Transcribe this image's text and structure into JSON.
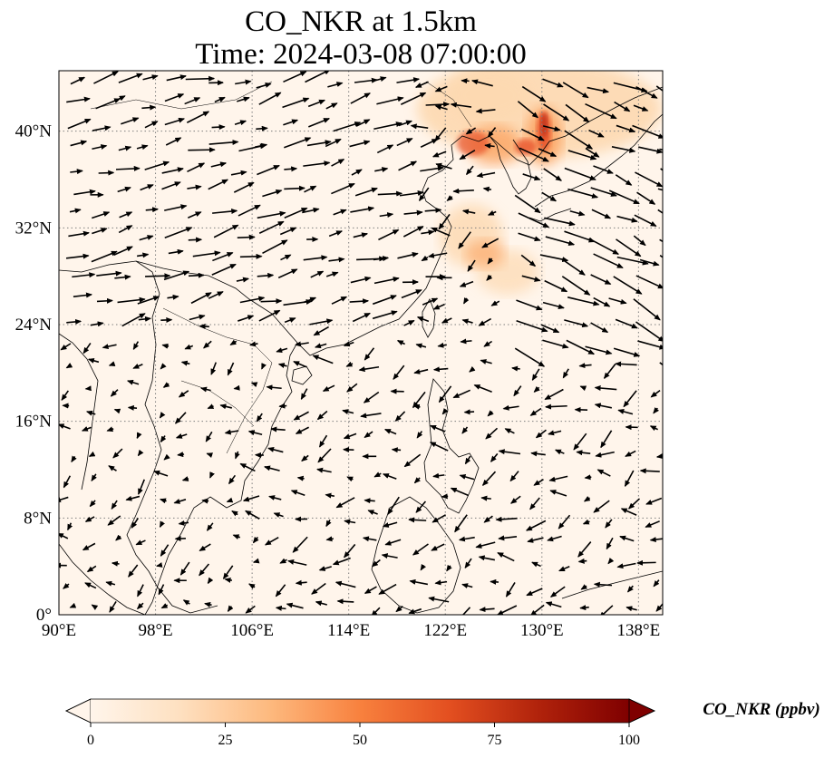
{
  "title": {
    "line1": "CO_NKR at 1.5km",
    "line2": "Time: 2024-03-08 07:00:00"
  },
  "map": {
    "extent": {
      "lon": [
        90,
        140
      ],
      "lat": [
        0,
        45
      ]
    },
    "lon_ticks": [
      "90°E",
      "98°E",
      "106°E",
      "114°E",
      "122°E",
      "130°E",
      "138°E"
    ],
    "lat_ticks": [
      "0°",
      "8°N",
      "16°N",
      "24°N",
      "32°N",
      "40°N"
    ],
    "lon_tick_values": [
      90,
      98,
      106,
      114,
      122,
      130,
      138
    ],
    "lat_tick_values": [
      0,
      8,
      16,
      24,
      32,
      40
    ],
    "gridlines": true,
    "field_colors": {
      "background": "#fff5eb",
      "low": "#fdd9b1",
      "mid": "#fb9d59",
      "high": "#e8532b",
      "peak": "#c0301c"
    }
  },
  "colorbar": {
    "label": "CO_NKR (ppbv)",
    "ticks": [
      "0",
      "25",
      "50",
      "75",
      "100"
    ],
    "tick_values": [
      0,
      25,
      50,
      75,
      100
    ],
    "range": [
      0,
      100
    ],
    "extend": "both",
    "colors": [
      "#fff5eb",
      "#fee0c0",
      "#fdb97e",
      "#f8813e",
      "#e34f20",
      "#b0220b",
      "#7f0000"
    ]
  }
}
